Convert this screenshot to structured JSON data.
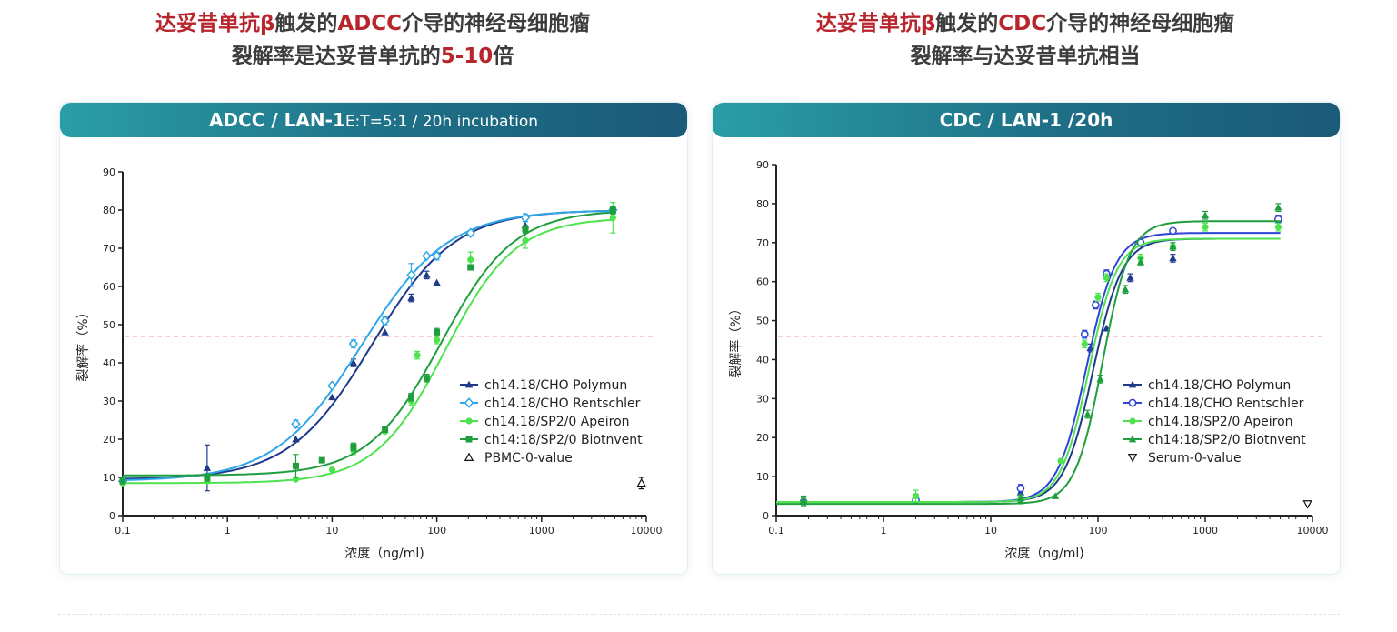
{
  "left_panel": {
    "heading": {
      "line1_hl1": "达妥昔单抗β",
      "line1_mid": "触发的",
      "line1_hl2": "ADCC",
      "line1_end": "介导的神经母细胞瘤",
      "line2_start": "裂解率是达妥昔单抗的",
      "line2_hl": "5-10",
      "line2_end": "倍"
    },
    "banner": {
      "main": "ADCC / LAN-1",
      "sub": "E:T=5:1 / 20h incubation"
    }
  },
  "right_panel": {
    "heading": {
      "line1_hl1": "达妥昔单抗β",
      "line1_mid": "触发的",
      "line1_hl2": "CDC",
      "line1_end": "介导的神经母细胞瘤",
      "line2": "裂解率与达妥昔单抗相当"
    },
    "banner": {
      "main": "CDC / LAN-1 /20h"
    }
  },
  "chart_data": [
    {
      "type": "scatter",
      "title": "ADCC / LAN-1 E:T=5:1 / 20h incubation",
      "xlabel": "浓度（ng/ml)",
      "ylabel": "裂解率（%）",
      "xscale": "log",
      "xlim": [
        0.1,
        10000
      ],
      "ylim": [
        0,
        90
      ],
      "x_ticks": [
        "0.1",
        "1",
        "10",
        "100",
        "1000",
        "10000"
      ],
      "y_ticks": [
        "0",
        "10",
        "20",
        "30",
        "40",
        "50",
        "60",
        "70",
        "80",
        "90"
      ],
      "reference_line": 47,
      "legend_position": "right",
      "series": [
        {
          "name": "ch14.18/CHO Polymun",
          "color": "#1f3a8a",
          "marker": "triangle",
          "x": [
            0.1,
            0.64,
            4.5,
            10,
            16,
            32,
            57,
            80,
            100,
            700,
            4800
          ],
          "y": [
            9.5,
            12.5,
            20,
            31,
            40,
            48,
            57,
            63,
            61,
            76,
            80
          ],
          "err": [
            0,
            6,
            0,
            0,
            1,
            0,
            1,
            1,
            0,
            1,
            1
          ],
          "fit": {
            "bottom": 9.5,
            "top": 80,
            "ec50": 24,
            "hill": 1.1
          }
        },
        {
          "name": "ch14.18/CHO Rentschler",
          "color": "#2fa6e8",
          "marker": "diamond",
          "x": [
            0.1,
            4.5,
            10,
            16,
            32,
            57,
            80,
            100,
            210,
            700,
            4800
          ],
          "y": [
            9,
            24,
            34,
            45,
            51,
            63,
            68,
            68,
            74,
            78,
            80
          ],
          "err": [
            0,
            1,
            0,
            1,
            1,
            3,
            0,
            1,
            0,
            1,
            1
          ],
          "fit": {
            "bottom": 9,
            "top": 80,
            "ec50": 19,
            "hill": 1.05
          }
        },
        {
          "name": "ch14.18/SP2/0 Apeiron",
          "color": "#4ee24e",
          "marker": "circle",
          "x": [
            0.1,
            0.64,
            4.5,
            10,
            16,
            32,
            57,
            65,
            100,
            210,
            700,
            4800
          ],
          "y": [
            8.5,
            9,
            9.5,
            12,
            17,
            22,
            30,
            42,
            46,
            67,
            72,
            78
          ],
          "err": [
            0,
            0,
            0,
            0,
            1,
            0,
            1,
            1,
            1,
            2,
            2,
            4
          ],
          "fit": {
            "bottom": 8.5,
            "top": 78,
            "ec50": 120,
            "hill": 1.3
          }
        },
        {
          "name": "ch14:18/SP2/0 Biotnvent",
          "color": "#1e9e3c",
          "marker": "square",
          "x": [
            0.1,
            0.64,
            4.5,
            8,
            16,
            32,
            57,
            80,
            100,
            210,
            700,
            4800
          ],
          "y": [
            9,
            10,
            13,
            14.5,
            18,
            22.5,
            31,
            36,
            48,
            65,
            75,
            80
          ],
          "err": [
            0,
            1,
            3,
            0,
            1,
            0,
            1,
            1,
            1,
            0,
            1,
            1
          ],
          "fit": {
            "bottom": 10.5,
            "top": 80,
            "ec50": 110,
            "hill": 1.25
          }
        },
        {
          "name": "PBMC-0-value",
          "color": "#111111",
          "marker": "open-triangle",
          "x": [
            9000
          ],
          "y": [
            8.5
          ],
          "err": [
            1.5
          ],
          "fit": null
        }
      ]
    },
    {
      "type": "scatter",
      "title": "CDC / LAN-1 /20h",
      "xlabel": "浓度（ng/ml)",
      "ylabel": "裂解率（%）",
      "xscale": "log",
      "xlim": [
        0.1,
        10000
      ],
      "ylim": [
        0,
        90
      ],
      "x_ticks": [
        "0.1",
        "1",
        "10",
        "100",
        "1000",
        "10000"
      ],
      "y_ticks": [
        "0",
        "10",
        "20",
        "30",
        "40",
        "50",
        "60",
        "70",
        "80",
        "90"
      ],
      "reference_line": 46,
      "legend_position": "right",
      "series": [
        {
          "name": "ch14.18/CHO Polymun",
          "color": "#1f3a8a",
          "marker": "triangle",
          "x": [
            0.18,
            2,
            19,
            85,
            120,
            200,
            500,
            4800
          ],
          "y": [
            4,
            4.5,
            6,
            43,
            48,
            61,
            66,
            76
          ],
          "err": [
            1,
            1,
            1,
            1,
            0,
            1,
            1,
            1
          ],
          "fit": {
            "bottom": 3.5,
            "top": 71,
            "ec50": 90,
            "hill": 3.2
          }
        },
        {
          "name": "ch14.18/CHO Rentschler",
          "color": "#2e43d8",
          "marker": "open-circle",
          "x": [
            0.18,
            2,
            19,
            75,
            95,
            120,
            250,
            500,
            4800
          ],
          "y": [
            3.5,
            4,
            7,
            46.5,
            54,
            62,
            70,
            73,
            76
          ],
          "err": [
            1,
            1,
            1,
            1,
            1,
            1,
            1,
            0,
            1
          ],
          "fit": {
            "bottom": 3.5,
            "top": 72.5,
            "ec50": 78,
            "hill": 3.2
          }
        },
        {
          "name": "ch14.18/SP2/0 Apeiron",
          "color": "#4ee24e",
          "marker": "circle",
          "x": [
            0.18,
            2,
            19,
            45,
            75,
            100,
            120,
            250,
            500,
            1000,
            4800
          ],
          "y": [
            3.5,
            5,
            4,
            14,
            44,
            56,
            61,
            66,
            69,
            74,
            74
          ],
          "err": [
            1,
            1.5,
            1,
            0,
            1,
            1,
            1,
            1,
            1,
            1,
            1
          ],
          "fit": {
            "bottom": 3.5,
            "top": 71,
            "ec50": 82,
            "hill": 3.3
          }
        },
        {
          "name": "ch14:18/SP2/0 Biotnvent",
          "color": "#1e9e3c",
          "marker": "triangle",
          "x": [
            0.18,
            19,
            40,
            80,
            105,
            180,
            250,
            500,
            1000,
            4800
          ],
          "y": [
            4,
            4.5,
            5,
            26,
            35,
            58,
            65,
            69,
            77,
            79
          ],
          "err": [
            1,
            1,
            0,
            1,
            1,
            1,
            1,
            1,
            1,
            1
          ],
          "fit": {
            "bottom": 3,
            "top": 75.5,
            "ec50": 110,
            "hill": 3.4
          }
        },
        {
          "name": "Serum-0-value",
          "color": "#111111",
          "marker": "open-triangle-down",
          "x": [
            9000
          ],
          "y": [
            3
          ],
          "err": [
            0
          ],
          "fit": null
        }
      ]
    }
  ]
}
